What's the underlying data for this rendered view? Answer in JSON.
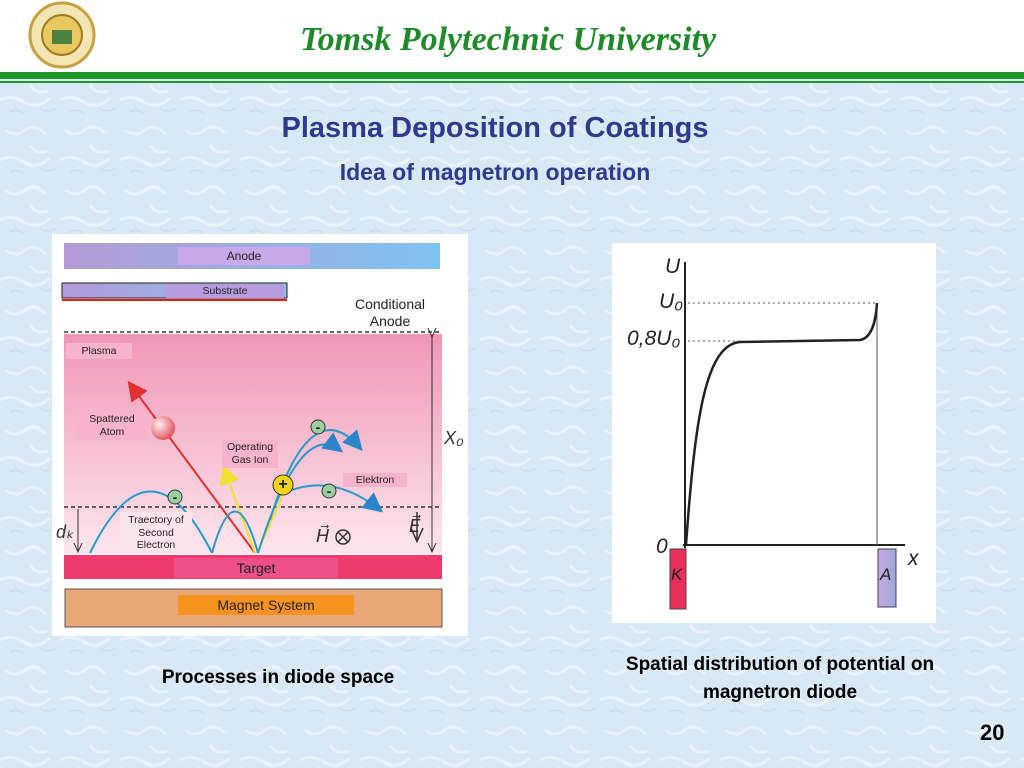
{
  "header": {
    "title": "Tomsk Polytechnic University"
  },
  "slide": {
    "title": "Plasma Deposition of Coatings",
    "subtitle": "Idea of magnetron operation",
    "page_number": "20"
  },
  "left_diagram": {
    "anode": "Anode",
    "substrate": "Substrate",
    "conditional_anode": "Conditional Anode",
    "plasma": "Plasma",
    "spattered_atom": "Spattered Atom",
    "operating_gas_ion": "Operating Gas Ion",
    "elektron": "Elektron",
    "trajectory": "Traectory of Second Electron",
    "target": "Target",
    "magnet_system": "Magnet System",
    "x0": "X₀",
    "dk": "dₖ",
    "h_field": "H⃗",
    "e_field": "E⃗",
    "electron_sign": "-",
    "ion_sign": "+",
    "caption": "Processes in diode space"
  },
  "right_diagram": {
    "u_axis": "U",
    "u0": "U₀",
    "u08": "0,8U₀",
    "origin": "0",
    "x_axis": "x",
    "cathode": "K",
    "anode": "A",
    "caption": "Spatial distribution of potential on magnetron diode"
  }
}
